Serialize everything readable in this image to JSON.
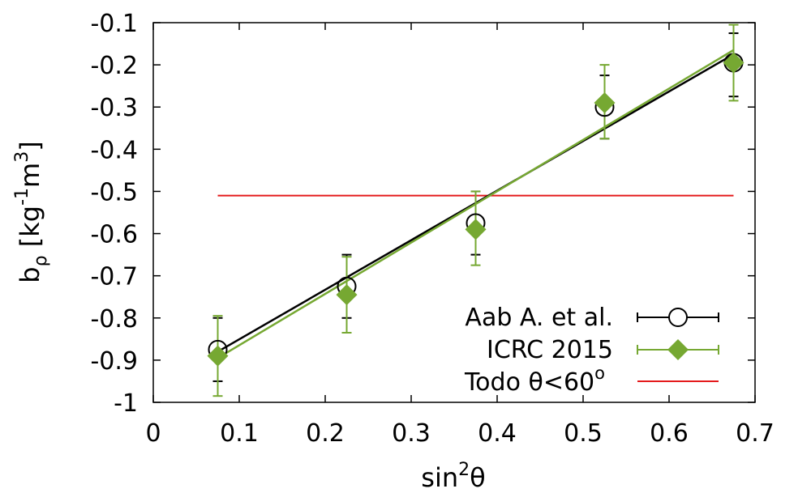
{
  "chart_data": {
    "type": "scatter",
    "xlabel": {
      "base": "sin",
      "sup": "2",
      "tail": "θ"
    },
    "ylabel": {
      "base": "b",
      "sub": "ρ",
      "rest1": " [kg",
      "sup1": "-1",
      "rest2": "m",
      "sup2": "3",
      "rest3": "]"
    },
    "xlim": [
      0,
      0.7
    ],
    "ylim": [
      -1,
      -0.1
    ],
    "x_ticks": [
      0,
      0.1,
      0.2,
      0.3,
      0.4,
      0.5,
      0.6,
      0.7
    ],
    "x_tick_labels": [
      "0",
      "0.1",
      "0.2",
      "0.3",
      "0.4",
      "0.5",
      "0.6",
      "0.7"
    ],
    "y_ticks": [
      -1,
      -0.9,
      -0.8,
      -0.7,
      -0.6,
      -0.5,
      -0.4,
      -0.3,
      -0.2,
      -0.1
    ],
    "y_tick_labels": [
      "-1",
      "-0.9",
      "-0.8",
      "-0.7",
      "-0.6",
      "-0.5",
      "-0.4",
      "-0.3",
      "-0.2",
      "-0.1"
    ],
    "grid": false,
    "legend_position": "bottom-right",
    "series": [
      {
        "name": "Aab A. et al.",
        "color": "#000000",
        "marker": "open-circle",
        "x": [
          0.075,
          0.225,
          0.375,
          0.525,
          0.675
        ],
        "y": [
          -0.875,
          -0.725,
          -0.575,
          -0.3,
          -0.195
        ],
        "err_low": [
          -0.95,
          -0.8,
          -0.65,
          -0.375,
          -0.275
        ],
        "err_high": [
          -0.8,
          -0.65,
          -0.5,
          -0.225,
          -0.125
        ],
        "fit_line": {
          "x": [
            0.075,
            0.675
          ],
          "y": [
            -0.88,
            -0.175
          ]
        }
      },
      {
        "name": "ICRC 2015",
        "color": "#76a832",
        "marker": "filled-diamond",
        "x": [
          0.075,
          0.225,
          0.375,
          0.525,
          0.675
        ],
        "y": [
          -0.89,
          -0.745,
          -0.59,
          -0.29,
          -0.195
        ],
        "err_low": [
          -0.985,
          -0.835,
          -0.675,
          -0.375,
          -0.285
        ],
        "err_high": [
          -0.795,
          -0.655,
          -0.5,
          -0.2,
          -0.105
        ],
        "fit_line": {
          "x": [
            0.075,
            0.675
          ],
          "y": [
            -0.895,
            -0.165
          ]
        }
      },
      {
        "name_parts": {
          "text": "Todo θ<60",
          "sup": "o"
        },
        "color": "#e41a1c",
        "marker": "line",
        "line": {
          "x": [
            0.075,
            0.675
          ],
          "y": [
            -0.51,
            -0.51
          ]
        }
      }
    ]
  }
}
